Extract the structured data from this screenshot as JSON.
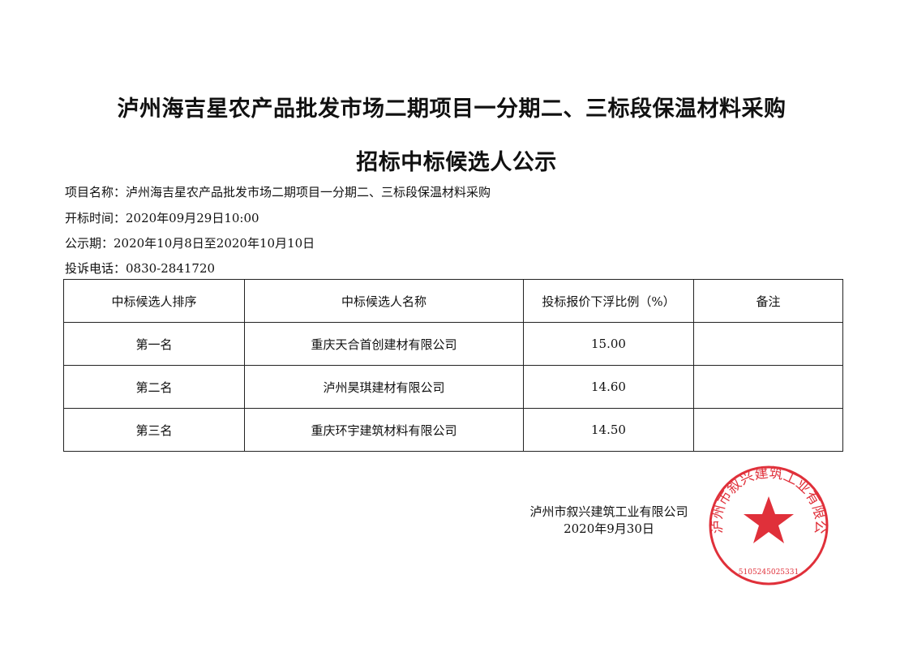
{
  "title_line1": "泸州海吉星农产品批发市场二期项目一分期二、三标段保温材料采购",
  "title_line2": "招标中标候选人公示",
  "info": [
    "项目名称：泸州海吉星农产品批发市场二期项目一分期二、三标段保温材料采购",
    "开标时间：2020年09月29日10:00",
    "公示期：2020年10月8日至2020年10月10日",
    "投诉电话：0830-2841720"
  ],
  "table": {
    "headers": [
      "中标候选人排序",
      "中标候选人名称",
      "投标报价下浮比例（%）",
      "备注"
    ],
    "rows": [
      [
        "第一名",
        "重庆天合首创建材有限公司",
        "15.00",
        ""
      ],
      [
        "第二名",
        "泸州昊琪建材有限公司",
        "14.60",
        ""
      ],
      [
        "第三名",
        "重庆环宇建筑材料有限公司",
        "14.50",
        ""
      ]
    ]
  },
  "signature": {
    "company": "泸州市叙兴建筑工业有限公司",
    "date": "2020年9月30日"
  },
  "seal": {
    "text": "泸州市叙兴建筑工业有限公司",
    "number": "5105245025331",
    "color": "#e0303a"
  }
}
